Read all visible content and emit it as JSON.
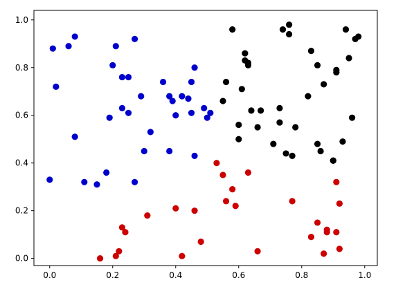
{
  "chart_data": {
    "type": "scatter",
    "xlim": [
      -0.05,
      1.04
    ],
    "ylim": [
      -0.03,
      1.04
    ],
    "x_ticks": [
      0.0,
      0.2,
      0.4,
      0.6,
      0.8,
      1.0
    ],
    "y_ticks": [
      0.0,
      0.2,
      0.4,
      0.6,
      0.8,
      1.0
    ],
    "x_tick_labels": [
      "0.0",
      "0.2",
      "0.4",
      "0.6",
      "0.8",
      "1.0"
    ],
    "y_tick_labels": [
      "0.0",
      "0.2",
      "0.4",
      "0.6",
      "0.8",
      "1.0"
    ],
    "grid": false,
    "series": [
      {
        "color": "#0000cc",
        "points": [
          [
            0.01,
            0.88
          ],
          [
            0.02,
            0.72
          ],
          [
            0.06,
            0.89
          ],
          [
            0.08,
            0.93
          ],
          [
            0.08,
            0.51
          ],
          [
            0.0,
            0.33
          ],
          [
            0.11,
            0.32
          ],
          [
            0.15,
            0.31
          ],
          [
            0.18,
            0.36
          ],
          [
            0.19,
            0.59
          ],
          [
            0.2,
            0.81
          ],
          [
            0.21,
            0.89
          ],
          [
            0.23,
            0.76
          ],
          [
            0.23,
            0.63
          ],
          [
            0.25,
            0.76
          ],
          [
            0.25,
            0.61
          ],
          [
            0.27,
            0.92
          ],
          [
            0.27,
            0.32
          ],
          [
            0.29,
            0.68
          ],
          [
            0.3,
            0.45
          ],
          [
            0.32,
            0.53
          ],
          [
            0.36,
            0.74
          ],
          [
            0.38,
            0.68
          ],
          [
            0.38,
            0.45
          ],
          [
            0.39,
            0.66
          ],
          [
            0.4,
            0.6
          ],
          [
            0.42,
            0.68
          ],
          [
            0.44,
            0.67
          ],
          [
            0.45,
            0.61
          ],
          [
            0.45,
            0.74
          ],
          [
            0.46,
            0.8
          ],
          [
            0.46,
            0.43
          ],
          [
            0.49,
            0.63
          ],
          [
            0.5,
            0.59
          ],
          [
            0.51,
            0.61
          ]
        ]
      },
      {
        "color": "#000000",
        "points": [
          [
            0.55,
            0.66
          ],
          [
            0.56,
            0.74
          ],
          [
            0.58,
            0.96
          ],
          [
            0.6,
            0.56
          ],
          [
            0.6,
            0.5
          ],
          [
            0.61,
            0.71
          ],
          [
            0.62,
            0.86
          ],
          [
            0.62,
            0.83
          ],
          [
            0.63,
            0.82
          ],
          [
            0.63,
            0.81
          ],
          [
            0.64,
            0.62
          ],
          [
            0.66,
            0.55
          ],
          [
            0.67,
            0.62
          ],
          [
            0.71,
            0.48
          ],
          [
            0.73,
            0.57
          ],
          [
            0.73,
            0.63
          ],
          [
            0.74,
            0.96
          ],
          [
            0.75,
            0.44
          ],
          [
            0.76,
            0.98
          ],
          [
            0.76,
            0.94
          ],
          [
            0.77,
            0.43
          ],
          [
            0.78,
            0.55
          ],
          [
            0.82,
            0.68
          ],
          [
            0.83,
            0.87
          ],
          [
            0.85,
            0.81
          ],
          [
            0.85,
            0.48
          ],
          [
            0.86,
            0.45
          ],
          [
            0.87,
            0.73
          ],
          [
            0.9,
            0.41
          ],
          [
            0.9,
            0.41
          ],
          [
            0.91,
            0.79
          ],
          [
            0.91,
            0.78
          ],
          [
            0.93,
            0.49
          ],
          [
            0.94,
            0.96
          ],
          [
            0.95,
            0.84
          ],
          [
            0.96,
            0.59
          ],
          [
            0.97,
            0.92
          ],
          [
            0.98,
            0.93
          ]
        ]
      },
      {
        "color": "#cc0000",
        "points": [
          [
            0.16,
            0.0
          ],
          [
            0.21,
            0.01
          ],
          [
            0.22,
            0.03
          ],
          [
            0.23,
            0.13
          ],
          [
            0.24,
            0.11
          ],
          [
            0.31,
            0.18
          ],
          [
            0.4,
            0.21
          ],
          [
            0.42,
            0.01
          ],
          [
            0.46,
            0.2
          ],
          [
            0.48,
            0.07
          ],
          [
            0.53,
            0.4
          ],
          [
            0.55,
            0.35
          ],
          [
            0.56,
            0.24
          ],
          [
            0.58,
            0.29
          ],
          [
            0.59,
            0.22
          ],
          [
            0.63,
            0.36
          ],
          [
            0.66,
            0.03
          ],
          [
            0.77,
            0.24
          ],
          [
            0.83,
            0.09
          ],
          [
            0.85,
            0.15
          ],
          [
            0.87,
            0.02
          ],
          [
            0.88,
            0.12
          ],
          [
            0.88,
            0.11
          ],
          [
            0.91,
            0.11
          ],
          [
            0.91,
            0.32
          ],
          [
            0.92,
            0.23
          ],
          [
            0.92,
            0.04
          ]
        ]
      }
    ]
  }
}
